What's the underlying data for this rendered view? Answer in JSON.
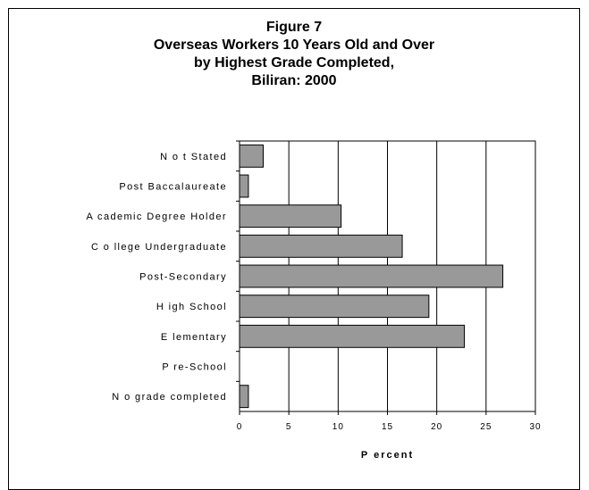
{
  "title_lines": [
    "Figure 7",
    "Overseas Workers 10 Years Old and Over",
    "by Highest Grade Completed,",
    "Biliran: 2000"
  ],
  "chart_data": {
    "type": "bar",
    "orientation": "horizontal",
    "title": "Figure 7 Overseas Workers 10 Years Old and Over by Highest Grade Completed, Biliran: 2000",
    "categories": [
      "N o t Stated",
      "Post Baccalaureate",
      "A cademic Degree Holder",
      "C o llege Undergraduate",
      "Post-Secondary",
      "H igh School",
      "E lementary",
      "P re-School",
      "N o grade completed"
    ],
    "values": [
      2.4,
      0.9,
      10.3,
      16.5,
      26.7,
      19.2,
      22.8,
      0,
      0.9
    ],
    "xlabel": "P ercent",
    "ylabel": "",
    "xlim": [
      0,
      30
    ],
    "xticks": [
      "0",
      "5",
      "10",
      "15",
      "20",
      "25",
      "30"
    ],
    "grid": true,
    "legend": "none",
    "colors": {
      "bar_fill": "#999999",
      "bar_stroke": "#000000",
      "grid": "#000000"
    }
  }
}
